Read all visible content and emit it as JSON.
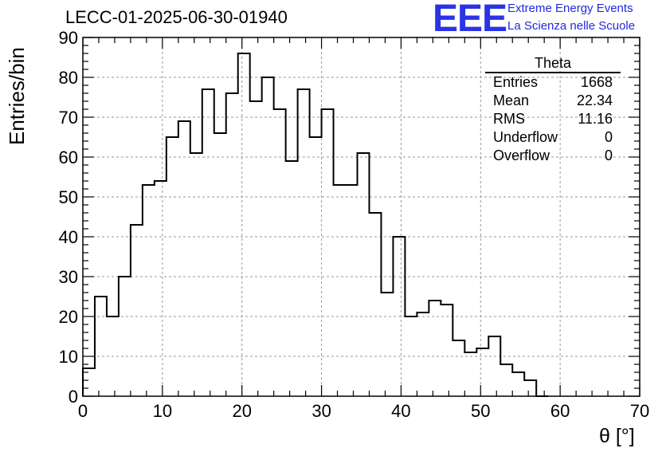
{
  "header": {
    "title": "LECC-01-2025-06-30-01940",
    "logo": {
      "letters": "EEE",
      "line1": "Extreme Energy Events",
      "line2": "La Scienza nelle Scuole",
      "color": "#2a33e6"
    }
  },
  "stats": {
    "title": "Theta",
    "rows": [
      {
        "label": "Entries",
        "value": "1668"
      },
      {
        "label": "Mean",
        "value": "22.34"
      },
      {
        "label": "RMS",
        "value": "11.16"
      },
      {
        "label": "Underflow",
        "value": "0"
      },
      {
        "label": "Overflow",
        "value": "0"
      }
    ]
  },
  "chart_data": {
    "type": "bar",
    "histogram": true,
    "xlabel": "θ [°]",
    "ylabel": "Entries/bin",
    "xlim": [
      0,
      70
    ],
    "ylim": [
      0,
      90
    ],
    "grid": true,
    "xticks": [
      0,
      10,
      20,
      30,
      40,
      50,
      60,
      70
    ],
    "yticks": [
      0,
      10,
      20,
      30,
      40,
      50,
      60,
      70,
      80,
      90
    ],
    "bin_width": 1.5,
    "bin_start": 0,
    "values": [
      7,
      25,
      20,
      30,
      43,
      53,
      54,
      65,
      69,
      61,
      77,
      66,
      76,
      86,
      74,
      80,
      72,
      59,
      77,
      65,
      72,
      53,
      53,
      61,
      46,
      26,
      40,
      20,
      21,
      24,
      23,
      14,
      11,
      12,
      15,
      8,
      6,
      4,
      0
    ],
    "line_color": "#000000"
  }
}
